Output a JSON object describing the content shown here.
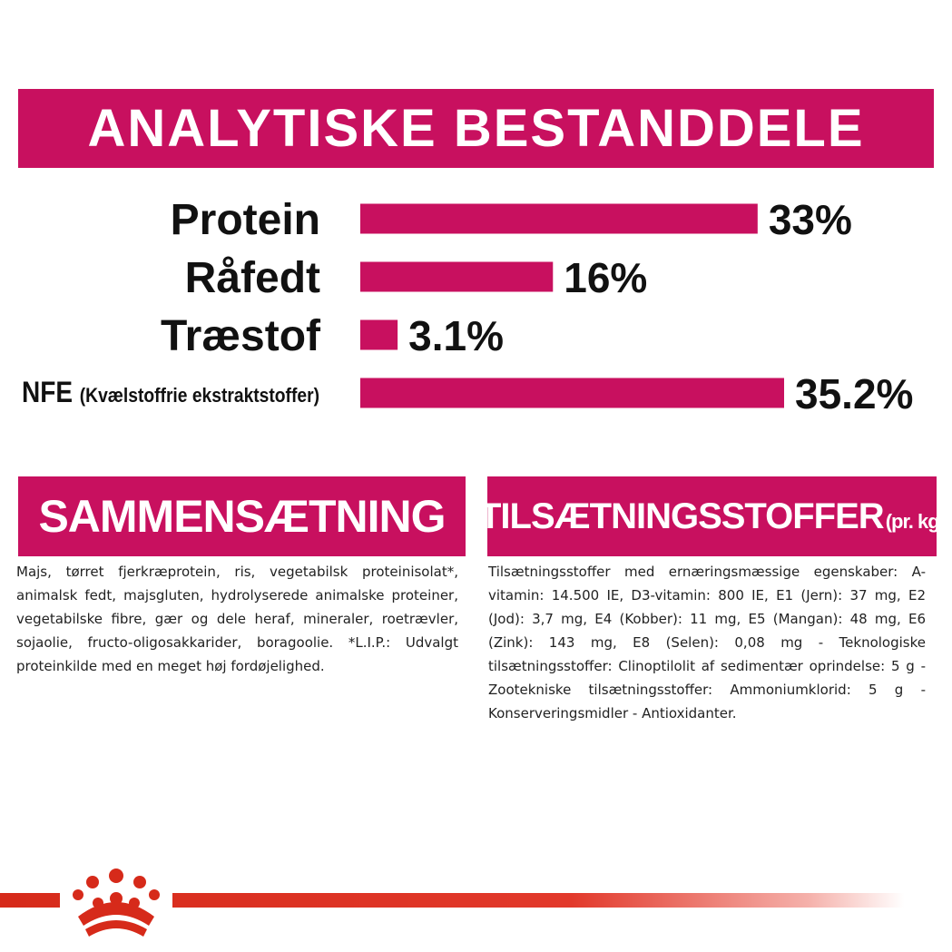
{
  "header": {
    "title": "ANALYTISKE BESTANDDELE"
  },
  "chart_data": {
    "type": "bar",
    "orientation": "horizontal",
    "title": "ANALYTISKE BESTANDDELE",
    "categories": [
      "Protein",
      "Råfedt",
      "Træstof",
      "NFE"
    ],
    "category_notes": [
      "",
      "",
      "",
      "(Kvælstoffrie ekstraktstoffer)"
    ],
    "values": [
      33,
      16,
      3.1,
      35.2
    ],
    "value_labels": [
      "33%",
      "16%",
      "3.1%",
      "35.2%"
    ],
    "unit": "%",
    "xlim": [
      0,
      35.2
    ],
    "bar_color": "#c8105f",
    "grid": false,
    "legend": "none"
  },
  "composition": {
    "title": "SAMMENSÆTNING",
    "text": "Majs, tørret fjerkræprotein, ris, vegetabilsk proteinisolat*, animalsk fedt, majsgluten, hydrolyserede animalske proteiner, vegetabilske fibre, gær og dele heraf, mineraler, roetrævler, sojaolie, fructo-oligosakkarider, boragoolie. *L.I.P.: Udvalgt proteinkilde med en meget høj fordøjelighed."
  },
  "additives": {
    "title": "TILSÆTNINGSSTOFFER",
    "title_suffix": "(pr. kg)",
    "text": "Tilsætningsstoffer med ernæringsmæssige egenskaber: A-vitamin: 14.500 IE, D3-vitamin: 800 IE, E1 (Jern): 37 mg, E2 (Jod): 3,7 mg, E4 (Kobber): 11 mg, E5 (Mangan): 48 mg, E6 (Zink): 143 mg, E8 (Selen): 0,08 mg - Teknologiske tilsætningsstoffer: Clinoptilolit af sedimentær oprindelse: 5 g - Zootekniske tilsætningsstoffer: Ammoniumklorid: 5 g - Konserveringsmidler - Antioxidanter."
  },
  "brand": {
    "logo_icon": "royal-canin-crown-icon",
    "accent_color": "#d62a1a"
  }
}
